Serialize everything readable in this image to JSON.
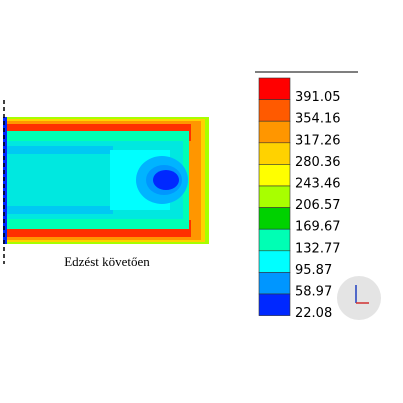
{
  "caption": "Edzést követően",
  "legend": {
    "labels": [
      "391.05",
      "354.16",
      "317.26",
      "280.36",
      "243.46",
      "206.57",
      "169.67",
      "132.77",
      "95.87",
      "58.97",
      "22.08"
    ],
    "colors": [
      "#ff0000",
      "#ff5a00",
      "#ff9600",
      "#ffd200",
      "#ffff00",
      "#a8ff00",
      "#00d200",
      "#00ffb4",
      "#00ffff",
      "#0096ff",
      "#0028ff"
    ]
  }
}
